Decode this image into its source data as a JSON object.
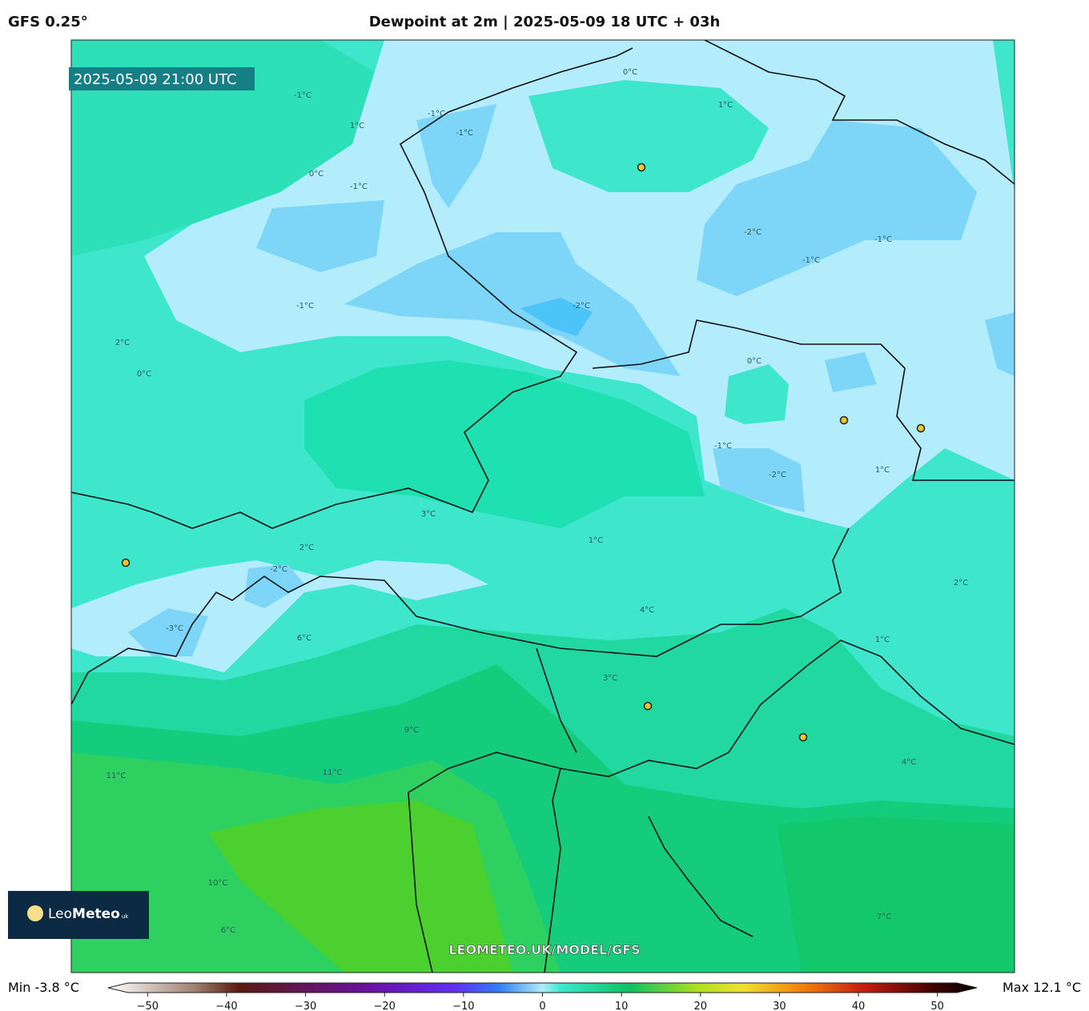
{
  "header": {
    "model": "GFS 0.25°",
    "title": "Dewpoint at 2m | 2025-05-09 18 UTC + 03h"
  },
  "map": {
    "timestamp": "2025-05-09 21:00 UTC",
    "watermark": "LEOMETEO.UK/MODEL/GFS",
    "contour_labels": [
      "-1°C",
      "1°C",
      "0°C",
      "-1°C",
      "-1°C",
      "1°C",
      "0°C",
      "-1°C",
      "-2°C",
      "-1°C",
      "-1°C",
      "-2°C",
      "-1°C",
      "0°C",
      "-2°C",
      "-1°C",
      "1°C",
      "2°C",
      "0°C",
      "3°C",
      "1°C",
      "2°C",
      "-2°C",
      "-3°C",
      "4°C",
      "3°C",
      "6°C",
      "9°C",
      "11°C",
      "11°C",
      "10°C",
      "6°C",
      "4°C",
      "7°C",
      "2°C",
      "1°C"
    ]
  },
  "logo": {
    "light": "Leo",
    "bold": "Meteo",
    "suffix": "uk"
  },
  "colorbar": {
    "min_label": "Min -3.8 °C",
    "max_label": "Max 12.1 °C",
    "lim": [
      -55,
      55
    ],
    "ticks": [
      {
        "value": -50,
        "label": "−50"
      },
      {
        "value": -40,
        "label": "−40"
      },
      {
        "value": -30,
        "label": "−30"
      },
      {
        "value": -20,
        "label": "−20"
      },
      {
        "value": -10,
        "label": "−10"
      },
      0,
      10,
      20,
      30,
      40,
      50
    ]
  }
}
